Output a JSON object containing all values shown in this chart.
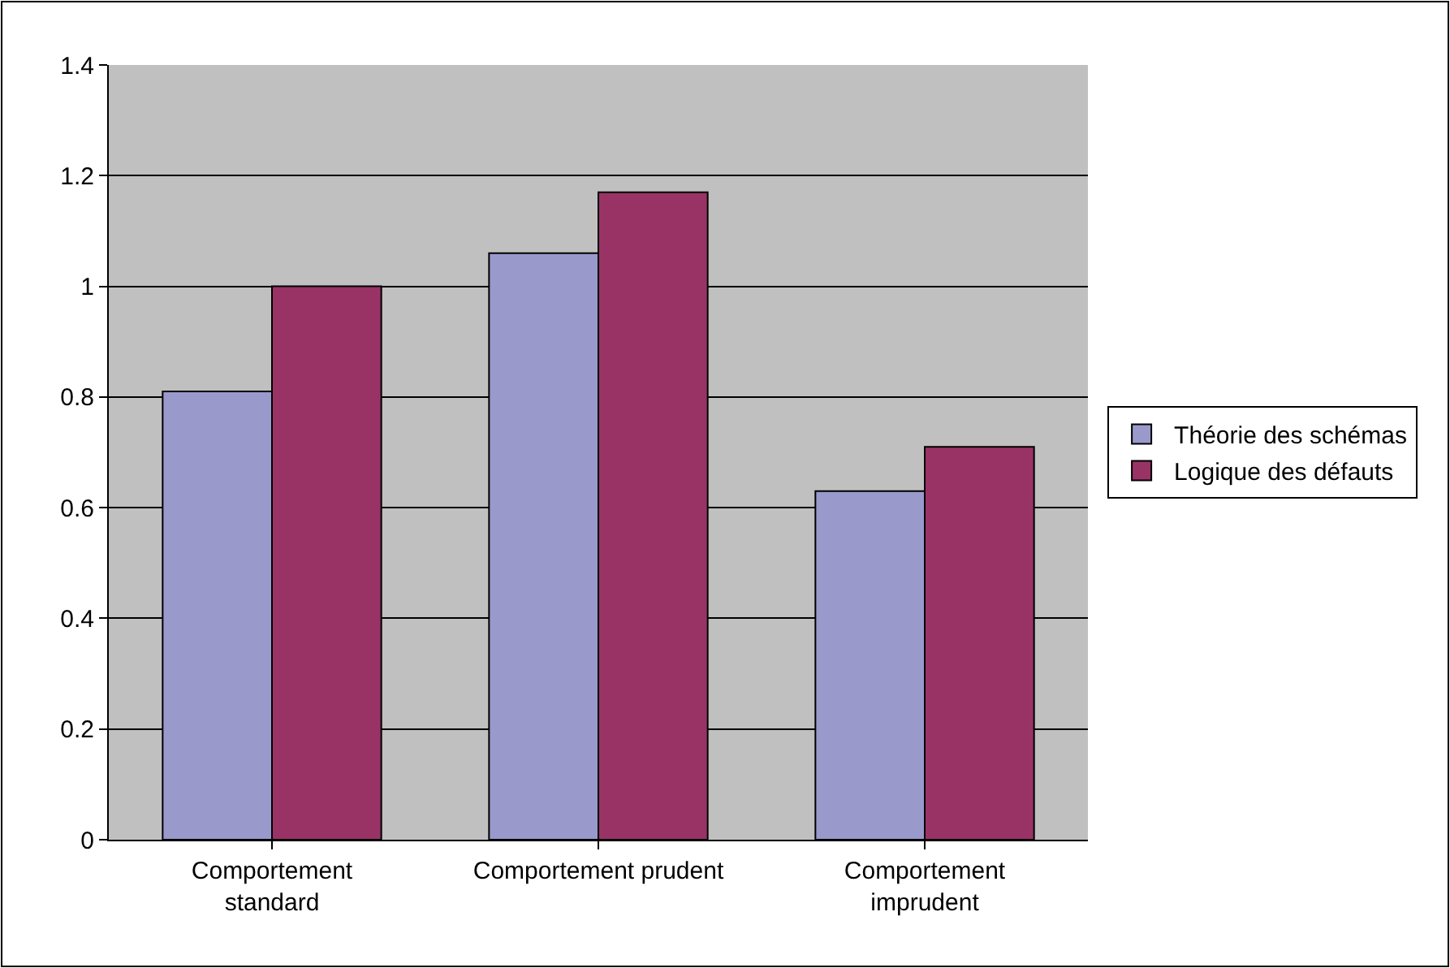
{
  "chart_data": {
    "type": "bar",
    "categories": [
      "Comportement\nstandard",
      "Comportement prudent",
      "Comportement\nimprudent"
    ],
    "series": [
      {
        "name": "Théorie des schémas",
        "color": "#9999cc",
        "values": [
          0.81,
          1.06,
          0.63
        ]
      },
      {
        "name": "Logique des défauts",
        "color": "#993366",
        "values": [
          1.0,
          1.17,
          0.71
        ]
      }
    ],
    "ylim": [
      0,
      1.4
    ],
    "yticks": [
      0,
      0.2,
      0.4,
      0.6,
      0.8,
      1,
      1.2,
      1.4
    ],
    "grid": "y",
    "legend": "right"
  }
}
